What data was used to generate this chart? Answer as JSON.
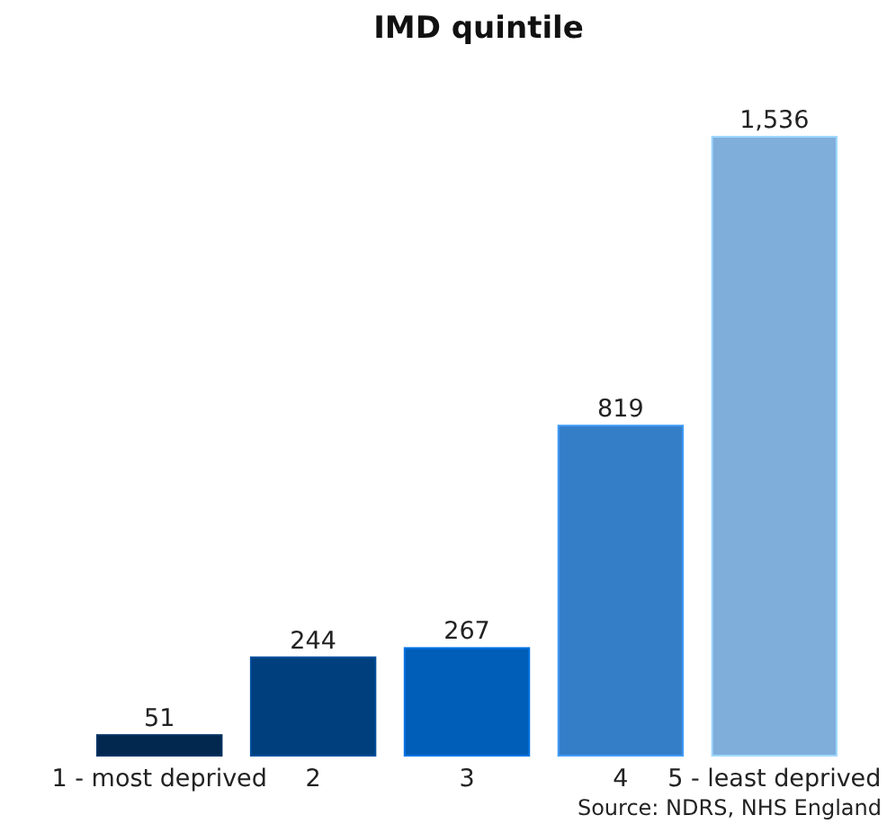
{
  "chart_data": {
    "type": "bar",
    "title": "IMD quintile",
    "categories": [
      "1 - most deprived",
      "2",
      "3",
      "4",
      "5 - least deprived"
    ],
    "values": [
      51,
      244,
      267,
      819,
      1536
    ],
    "colors": [
      "#02284f",
      "#003f7e",
      "#005eb8",
      "#347ec8",
      "#80aedb"
    ],
    "value_labels": [
      "51",
      "244",
      "267",
      "819",
      "1,536"
    ],
    "annotations": [
      "Source: NDRS, NHS England"
    ]
  }
}
